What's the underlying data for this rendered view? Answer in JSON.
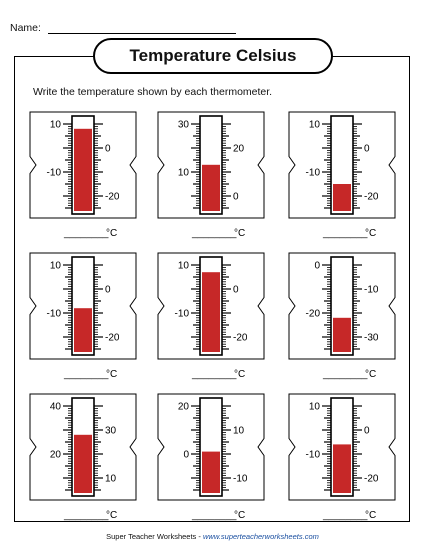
{
  "header": {
    "name_label": "Name:"
  },
  "title": "Temperature Celsius",
  "instruction": "Write the temperature shown by each thermometer.",
  "unit_label": "°C",
  "answer_blank": "________",
  "colors": {
    "mercury": "#c62828",
    "ink": "#000000"
  },
  "thermometers": [
    {
      "labels": [
        {
          "value": 10,
          "side": "left"
        },
        {
          "value": 0,
          "side": "right"
        },
        {
          "value": -10,
          "side": "left"
        },
        {
          "value": -20,
          "side": "right"
        }
      ],
      "top": 10,
      "bottom": -25,
      "reading": 8
    },
    {
      "labels": [
        {
          "value": 30,
          "side": "left"
        },
        {
          "value": 20,
          "side": "right"
        },
        {
          "value": 10,
          "side": "left"
        },
        {
          "value": 0,
          "side": "right"
        }
      ],
      "top": 30,
      "bottom": -5,
      "reading": 13
    },
    {
      "labels": [
        {
          "value": 10,
          "side": "left"
        },
        {
          "value": 0,
          "side": "right"
        },
        {
          "value": -10,
          "side": "left"
        },
        {
          "value": -20,
          "side": "right"
        }
      ],
      "top": 10,
      "bottom": -25,
      "reading": -15
    },
    {
      "labels": [
        {
          "value": 10,
          "side": "left"
        },
        {
          "value": 0,
          "side": "right"
        },
        {
          "value": -10,
          "side": "left"
        },
        {
          "value": -20,
          "side": "right"
        }
      ],
      "top": 10,
      "bottom": -25,
      "reading": -8
    },
    {
      "labels": [
        {
          "value": 10,
          "side": "left"
        },
        {
          "value": 0,
          "side": "right"
        },
        {
          "value": -10,
          "side": "left"
        },
        {
          "value": -20,
          "side": "right"
        }
      ],
      "top": 10,
      "bottom": -25,
      "reading": 7
    },
    {
      "labels": [
        {
          "value": 0,
          "side": "left"
        },
        {
          "value": -10,
          "side": "right"
        },
        {
          "value": -20,
          "side": "left"
        },
        {
          "value": -30,
          "side": "right"
        }
      ],
      "top": 0,
      "bottom": -35,
      "reading": -22
    },
    {
      "labels": [
        {
          "value": 40,
          "side": "left"
        },
        {
          "value": 30,
          "side": "right"
        },
        {
          "value": 20,
          "side": "left"
        },
        {
          "value": 10,
          "side": "right"
        }
      ],
      "top": 40,
      "bottom": 5,
      "reading": 28
    },
    {
      "labels": [
        {
          "value": 20,
          "side": "left"
        },
        {
          "value": 10,
          "side": "right"
        },
        {
          "value": 0,
          "side": "left"
        },
        {
          "value": -10,
          "side": "right"
        }
      ],
      "top": 20,
      "bottom": -15,
      "reading": 1
    },
    {
      "labels": [
        {
          "value": 10,
          "side": "left"
        },
        {
          "value": 0,
          "side": "right"
        },
        {
          "value": -10,
          "side": "left"
        },
        {
          "value": -20,
          "side": "right"
        }
      ],
      "top": 10,
      "bottom": -25,
      "reading": -6
    }
  ],
  "footer": {
    "left_text": "Super Teacher Worksheets",
    "separator": " - ",
    "site": "www.superteacherworksheets.com"
  }
}
